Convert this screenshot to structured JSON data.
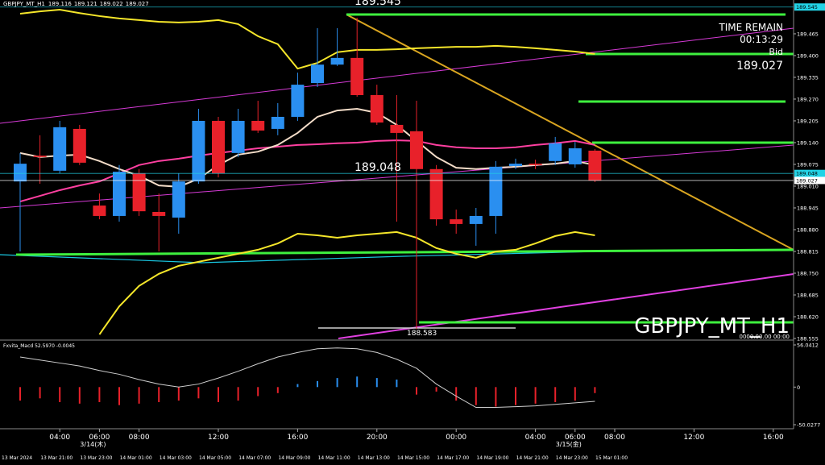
{
  "chart_data": [
    {
      "type": "candlestick",
      "title": "GBPJPY_MT_H1",
      "categories": [
        null,
        null,
        "04:00",
        null,
        "06:00",
        null,
        "08:00",
        null,
        null,
        null,
        "12:00",
        null,
        null,
        null,
        "16:00",
        null,
        null,
        null,
        "20:00",
        null,
        null,
        null,
        "00:00",
        null,
        null,
        null,
        "04:00",
        null,
        "06:00",
        null,
        "08:00",
        null,
        null,
        null,
        "12:00",
        null,
        null,
        null,
        "16:00",
        null
      ],
      "date_labels": [
        null,
        null,
        null,
        null,
        "3/14(木)",
        null,
        null,
        null,
        null,
        null,
        null,
        null,
        null,
        null,
        null,
        null,
        null,
        null,
        null,
        null,
        null,
        null,
        null,
        null,
        null,
        null,
        null,
        null,
        "3/15(金)",
        null,
        null,
        null,
        null,
        null,
        null,
        null,
        null,
        null,
        null,
        null
      ],
      "server_time_labels": [
        "13 Mar 2024",
        null,
        "13 Mar 21:00",
        null,
        "13 Mar 23:00",
        null,
        "14 Mar 01:00",
        null,
        "14 Mar 03:00",
        null,
        "14 Mar 05:00",
        null,
        "14 Mar 07:00",
        null,
        "14 Mar 09:00",
        null,
        "14 Mar 11:00",
        null,
        "14 Mar 13:00",
        null,
        "14 Mar 15:00",
        null,
        "14 Mar 17:00",
        null,
        "14 Mar 19:00",
        null,
        "14 Mar 21:00",
        null,
        "14 Mar 23:00",
        null,
        "15 Mar 01:00",
        null,
        null,
        null,
        null,
        null,
        null,
        null,
        null,
        null
      ],
      "open": [
        189.024,
        189.101,
        189.056,
        189.181,
        188.952,
        188.921,
        189.048,
        188.933,
        188.916,
        189.024,
        189.205,
        189.109,
        189.205,
        189.181,
        189.217,
        189.318,
        189.373,
        189.393,
        189.282,
        189.193,
        189.174,
        189.061,
        188.911,
        188.897,
        188.921,
        189.07,
        189.077,
        189.085,
        189.075,
        189.116,
        null,
        null,
        null,
        null,
        null,
        null,
        null,
        null,
        null,
        null
      ],
      "high": [
        189.109,
        189.162,
        189.205,
        189.193,
        188.988,
        189.073,
        189.061,
        188.988,
        189.048,
        189.241,
        189.217,
        189.241,
        189.265,
        189.258,
        189.349,
        189.482,
        189.482,
        189.513,
        189.313,
        189.282,
        189.265,
        189.073,
        188.94,
        188.945,
        189.085,
        189.092,
        189.089,
        189.157,
        189.142,
        189.121,
        null,
        null,
        null,
        null,
        null,
        null,
        null,
        null,
        null,
        null
      ],
      "low": [
        188.815,
        189.017,
        189.048,
        189.073,
        188.911,
        188.904,
        188.921,
        188.815,
        188.868,
        189.017,
        189.036,
        189.097,
        189.169,
        189.162,
        189.205,
        189.306,
        189.369,
        189.277,
        189.193,
        188.904,
        188.583,
        188.892,
        188.868,
        188.832,
        188.868,
        189.061,
        189.061,
        189.073,
        189.065,
        189.022,
        null,
        null,
        null,
        null,
        null,
        null,
        null,
        null,
        null,
        null
      ],
      "close": [
        189.077,
        189.097,
        189.186,
        189.08,
        188.921,
        189.053,
        188.935,
        188.921,
        189.024,
        189.205,
        189.048,
        189.205,
        189.176,
        189.217,
        189.313,
        189.373,
        189.393,
        189.282,
        189.2,
        189.169,
        189.061,
        188.911,
        188.897,
        188.921,
        189.068,
        189.077,
        189.073,
        189.138,
        189.123,
        189.027,
        null,
        null,
        null,
        null,
        null,
        null,
        null,
        null,
        null,
        null
      ],
      "up_color": "#2a8ff0",
      "down_color": "#e8212a",
      "overlays": [
        {
          "color": "#f5e62a",
          "values": [
            189.525,
            189.532,
            189.537,
            189.527,
            189.518,
            189.511,
            189.506,
            189.501,
            189.499,
            189.501,
            189.506,
            189.494,
            189.458,
            189.434,
            189.361,
            189.378,
            189.41,
            189.417,
            189.417,
            189.419,
            189.422,
            189.424,
            189.426,
            189.426,
            189.429,
            189.426,
            189.422,
            189.417,
            189.412,
            189.405,
            null,
            null,
            null,
            null,
            null,
            null,
            null,
            null,
            null,
            null
          ]
        },
        {
          "color": "#f5e62a",
          "values": [
            null,
            null,
            null,
            null,
            188.567,
            188.651,
            188.712,
            188.748,
            188.772,
            188.784,
            188.796,
            188.808,
            188.82,
            188.839,
            188.868,
            188.863,
            188.856,
            188.863,
            188.868,
            188.873,
            188.856,
            188.825,
            188.808,
            188.796,
            188.815,
            188.82,
            188.839,
            188.861,
            188.873,
            188.863,
            null,
            null,
            null,
            null,
            null,
            null,
            null,
            null,
            null,
            null
          ]
        },
        {
          "color": "#ff3fa0",
          "values": [
            188.964,
            188.981,
            188.998,
            189.012,
            189.024,
            189.048,
            189.073,
            189.085,
            189.092,
            189.101,
            189.109,
            189.116,
            189.123,
            189.128,
            189.133,
            189.135,
            189.138,
            189.14,
            189.145,
            189.147,
            189.145,
            189.133,
            189.126,
            189.123,
            189.123,
            189.126,
            189.133,
            189.138,
            189.145,
            189.133,
            null,
            null,
            null,
            null,
            null,
            null,
            null,
            null,
            null,
            null
          ]
        },
        {
          "color": "#f3dcc8",
          "values": [
            189.109,
            189.097,
            189.101,
            189.104,
            189.085,
            189.061,
            189.041,
            189.012,
            189.008,
            189.032,
            189.073,
            189.104,
            189.113,
            189.133,
            189.169,
            189.217,
            189.236,
            189.241,
            189.229,
            189.193,
            189.145,
            189.097,
            189.065,
            189.061,
            189.065,
            189.068,
            189.073,
            189.077,
            189.085,
            189.073,
            null,
            null,
            null,
            null,
            null,
            null,
            null,
            null,
            null,
            null
          ]
        }
      ],
      "ylim": [
        188.555,
        189.566
      ],
      "yticks": [
        189.465,
        {
          "value": 189.4,
          "label": "189.400"
        },
        189.335,
        {
          "value": 189.27,
          "label": "189.270"
        },
        189.205,
        {
          "value": 189.14,
          "label": "189.140"
        },
        189.075,
        {
          "value": 189.01,
          "label": "189.010"
        },
        188.945,
        {
          "value": 188.88,
          "label": "188.880"
        },
        188.815,
        {
          "value": 188.75,
          "label": "188.750"
        },
        188.685,
        {
          "value": 188.62,
          "label": "188.620"
        },
        188.555
      ],
      "price_markers": [
        189.545,
        189.048,
        189.027
      ],
      "price_marker_colors": [
        "#22d3e6",
        "#22d3e6",
        "#ffffff"
      ],
      "annotations": [
        "TIME REMAIN",
        "00:13:29",
        "Bid",
        "0000.00.00 00:00"
      ]
    },
    {
      "type": "macd",
      "title": "Fxvita_Macd 52.5970 -0.0045",
      "values": [
        -18,
        -15,
        -20,
        -22,
        -20,
        -24,
        -22,
        -20,
        -18,
        -15,
        -20,
        -18,
        -12,
        -8,
        4,
        8,
        12,
        14,
        12,
        10,
        -10,
        -6,
        -18,
        -24,
        -26,
        -24,
        -22,
        -20,
        -18,
        -8,
        null,
        null,
        null,
        null,
        null,
        null,
        null,
        null,
        null,
        null
      ],
      "up_color": "#2a8ff0",
      "down_color": "#e8212a",
      "signal": {
        "color": "#cfcfcf",
        "values": [
          40,
          36,
          32,
          28,
          22,
          17,
          10,
          4,
          0,
          4,
          12,
          21,
          31,
          40,
          46,
          51,
          52,
          51,
          46,
          37,
          25,
          4,
          -12,
          -27,
          -27,
          -26,
          -25,
          -23,
          -21,
          -19,
          null,
          null,
          null,
          null,
          null,
          null,
          null,
          null,
          null,
          null
        ]
      },
      "ylim": [
        -50.0277,
        56.0412
      ],
      "yticks": [
        56.0412,
        0,
        -50.0277
      ]
    }
  ]
}
